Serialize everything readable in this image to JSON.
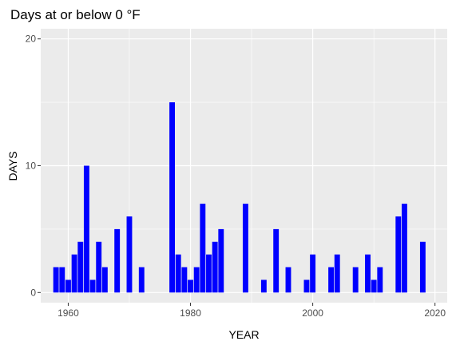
{
  "chart_data": {
    "type": "bar",
    "title": "Days at or below 0 °F",
    "xlabel": "YEAR",
    "ylabel": "DAYS",
    "xlim": [
      1955.5,
      2022
    ],
    "ylim": [
      -0.8,
      20.8
    ],
    "xticks": [
      1960,
      1980,
      2000,
      2020
    ],
    "yticks": [
      0,
      10,
      20
    ],
    "xtick_labels": [
      "1960",
      "1980",
      "2000",
      "2020"
    ],
    "ytick_labels": [
      "0",
      "10",
      "20"
    ],
    "grid": true,
    "legend": "none",
    "bar_color": "#0000ff",
    "panel_color": "#ebebeb",
    "grid_color": "#ffffff",
    "x": [
      1958,
      1959,
      1960,
      1961,
      1962,
      1963,
      1964,
      1965,
      1966,
      1968,
      1970,
      1972,
      1977,
      1978,
      1979,
      1980,
      1981,
      1982,
      1983,
      1984,
      1985,
      1989,
      1992,
      1994,
      1996,
      1999,
      2000,
      2003,
      2004,
      2007,
      2009,
      2010,
      2011,
      2014,
      2015,
      2018
    ],
    "values": [
      2,
      2,
      1,
      3,
      4,
      10,
      1,
      4,
      2,
      5,
      6,
      2,
      15,
      3,
      2,
      1,
      2,
      7,
      3,
      4,
      5,
      7,
      1,
      5,
      2,
      1,
      3,
      2,
      3,
      2,
      3,
      1,
      2,
      6,
      7,
      4
    ]
  }
}
